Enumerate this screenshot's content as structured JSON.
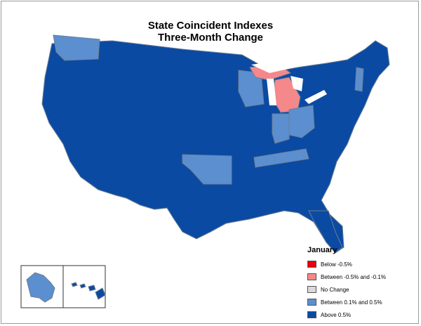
{
  "title": "State Coincident Indexes",
  "subtitle": "Three-Month Change",
  "legend": {
    "title": "January",
    "items": [
      {
        "label": "Below -0.5%",
        "color": "#e8000b"
      },
      {
        "label": "Between -0.5% and -0.1%",
        "color": "#f4888b"
      },
      {
        "label": "No Change",
        "color": "#d9d9d9"
      },
      {
        "label": "Between 0.1% and 0.5%",
        "color": "#5b8fd0"
      },
      {
        "label": "Above 0.5%",
        "color": "#0a4aa3"
      }
    ]
  },
  "colors": {
    "above": "#0a4aa3",
    "between_pos": "#5b8fd0",
    "between_neg": "#f4888b",
    "border": "#6f7f92"
  },
  "states": {
    "WA": "between_pos",
    "WI": "between_pos",
    "IN": "between_pos",
    "OH": "between_pos",
    "OK": "between_pos",
    "TN": "between_pos",
    "VT": "between_pos",
    "AK": "between_pos",
    "MI": "between_neg",
    "HI": "above"
  }
}
